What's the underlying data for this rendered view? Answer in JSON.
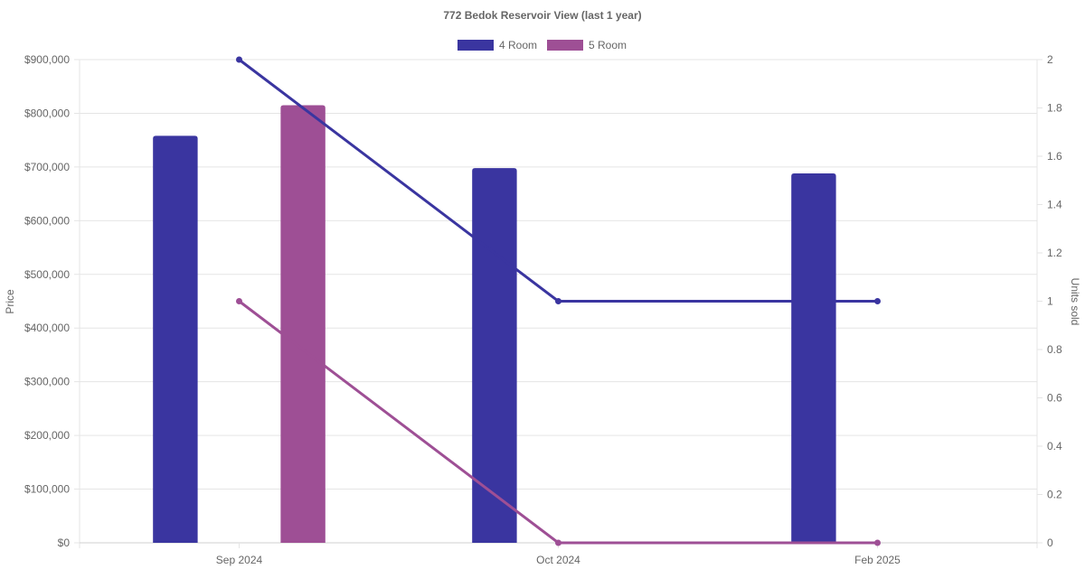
{
  "chart_data": {
    "type": "bar",
    "title": "772 Bedok Reservoir View (last 1 year)",
    "categories": [
      "Sep 2024",
      "Oct 2024",
      "Feb 2025"
    ],
    "y_left": {
      "label": "Price",
      "ylim": [
        0,
        900000
      ],
      "ticks": [
        "$0",
        "$100,000",
        "$200,000",
        "$300,000",
        "$400,000",
        "$500,000",
        "$600,000",
        "$700,000",
        "$800,000",
        "$900,000"
      ]
    },
    "y_right": {
      "label": "Units sold",
      "ylim": [
        0,
        2
      ],
      "ticks": [
        "0",
        "0.2",
        "0.4",
        "0.6",
        "0.8",
        "1",
        "1.2",
        "1.4",
        "1.6",
        "1.8",
        "2"
      ]
    },
    "series": [
      {
        "name": "4 Room",
        "color": "#3a35a0",
        "price": [
          758000,
          698000,
          688000
        ],
        "units": [
          2,
          1,
          1
        ]
      },
      {
        "name": "5 Room",
        "color": "#9e4f95",
        "price": [
          815000,
          null,
          null
        ],
        "units": [
          1,
          0,
          0
        ]
      }
    ],
    "legend_position": "top",
    "grid": true
  }
}
